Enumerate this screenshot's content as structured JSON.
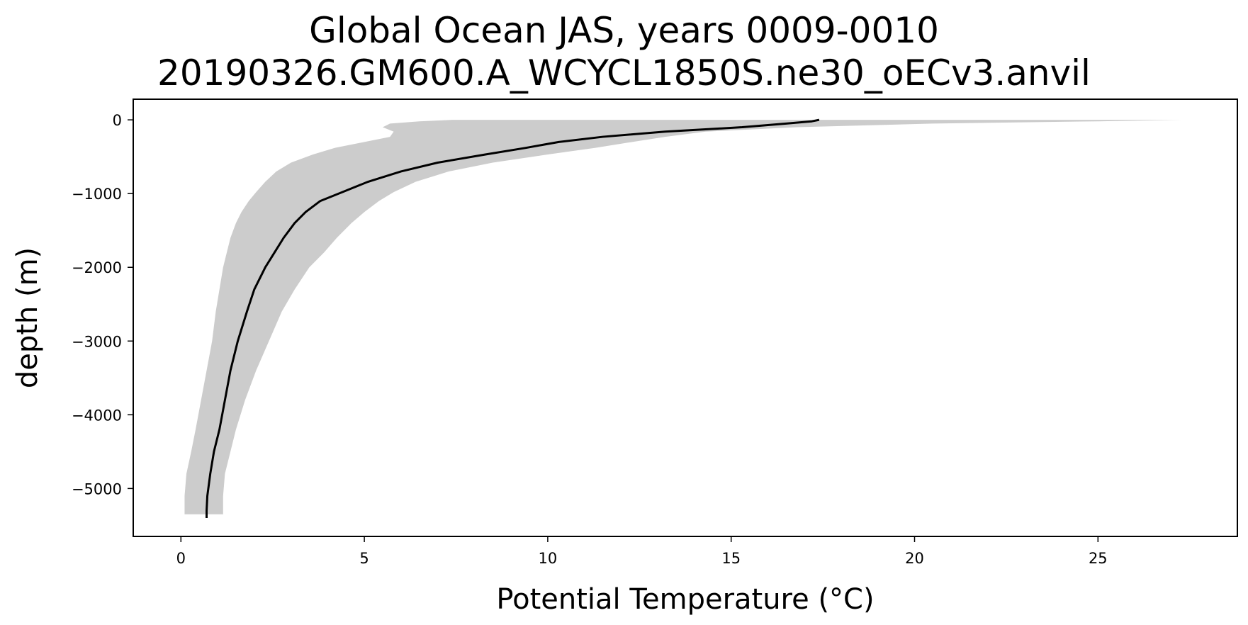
{
  "chart_data": {
    "type": "line",
    "title": "Global Ocean JAS, years 0009-0010",
    "subtitle": "20190326.GM600.A_WCYCL1850S.ne30_oECv3.anvil",
    "xlabel": "Potential Temperature (°C)",
    "ylabel": "depth (m)",
    "xlim": [
      -1.3,
      28.8
    ],
    "ylim": [
      -5650,
      280
    ],
    "xticks": [
      0,
      5,
      10,
      15,
      20,
      25
    ],
    "yticks": [
      0,
      -1000,
      -2000,
      -3000,
      -4000,
      -5000
    ],
    "xtick_labels": [
      "0",
      "5",
      "10",
      "15",
      "20",
      "25"
    ],
    "ytick_labels": [
      "0",
      "−1000",
      "−2000",
      "−3000",
      "−4000",
      "−5000"
    ],
    "grid": false,
    "series": [
      {
        "kind": "mean",
        "color": "#000000",
        "x": [
          17.4,
          17.2,
          16.5,
          15.3,
          13.2,
          11.5,
          10.3,
          9.4,
          8.3,
          7.0,
          6.0,
          5.1,
          4.4,
          3.8,
          3.4,
          3.1,
          2.8,
          2.55,
          2.3,
          2.0,
          1.8,
          1.55,
          1.35,
          1.2,
          1.05,
          0.9,
          0.8,
          0.72,
          0.7,
          0.7
        ],
        "y": [
          0,
          -20,
          -50,
          -100,
          -160,
          -230,
          -300,
          -380,
          -470,
          -580,
          -700,
          -840,
          -980,
          -1100,
          -1250,
          -1400,
          -1600,
          -1800,
          -2000,
          -2300,
          -2600,
          -3000,
          -3400,
          -3800,
          -4200,
          -4500,
          -4800,
          -5100,
          -5300,
          -5400
        ]
      },
      {
        "kind": "range",
        "color": "#cccccc",
        "y": [
          0,
          -20,
          -50,
          -100,
          -160,
          -230,
          -300,
          -380,
          -470,
          -580,
          -700,
          -840,
          -980,
          -1100,
          -1250,
          -1400,
          -1600,
          -1800,
          -2000,
          -2300,
          -2600,
          -3000,
          -3400,
          -3800,
          -4200,
          -4500,
          -4800,
          -5100,
          -5350
        ],
        "x_min": [
          7.4,
          6.5,
          5.7,
          5.5,
          5.8,
          5.7,
          5.0,
          4.2,
          3.6,
          3.0,
          2.6,
          2.3,
          2.05,
          1.85,
          1.65,
          1.5,
          1.35,
          1.25,
          1.15,
          1.05,
          0.95,
          0.85,
          0.7,
          0.55,
          0.4,
          0.28,
          0.15,
          0.1,
          0.1
        ],
        "x_max": [
          27.3,
          25.0,
          20.5,
          16.8,
          14.3,
          13.2,
          12.3,
          11.3,
          10.0,
          8.5,
          7.3,
          6.4,
          5.8,
          5.4,
          5.0,
          4.65,
          4.25,
          3.9,
          3.5,
          3.1,
          2.75,
          2.4,
          2.05,
          1.75,
          1.5,
          1.35,
          1.2,
          1.15,
          1.15
        ]
      }
    ]
  }
}
